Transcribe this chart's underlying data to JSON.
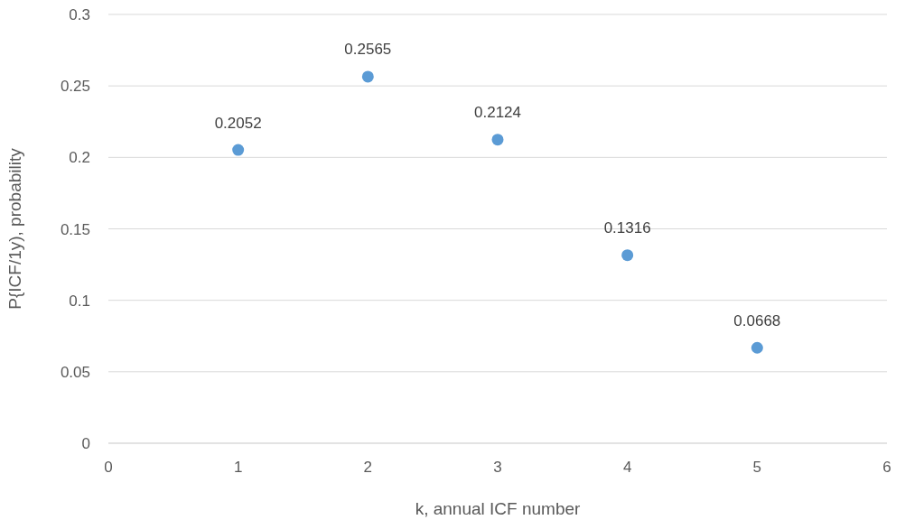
{
  "chart_data": {
    "type": "scatter",
    "xlabel": "k, annual ICF number",
    "ylabel": "P{ICF/1y), probability",
    "x": [
      1,
      2,
      3,
      4,
      5
    ],
    "series": [
      {
        "color": "#5b9bd5",
        "values": [
          0.2052,
          0.2565,
          0.2124,
          0.1316,
          0.0668
        ]
      }
    ],
    "data_labels": true,
    "marker": "circle",
    "grid": "y",
    "xlim": [
      0,
      6
    ],
    "xticks": [
      0,
      1,
      2,
      3,
      4,
      5,
      6
    ],
    "ylim": [
      0,
      0.3
    ],
    "yticks": [
      0,
      0.05,
      0.1,
      0.15,
      0.2,
      0.25,
      0.3
    ],
    "legend": false
  }
}
